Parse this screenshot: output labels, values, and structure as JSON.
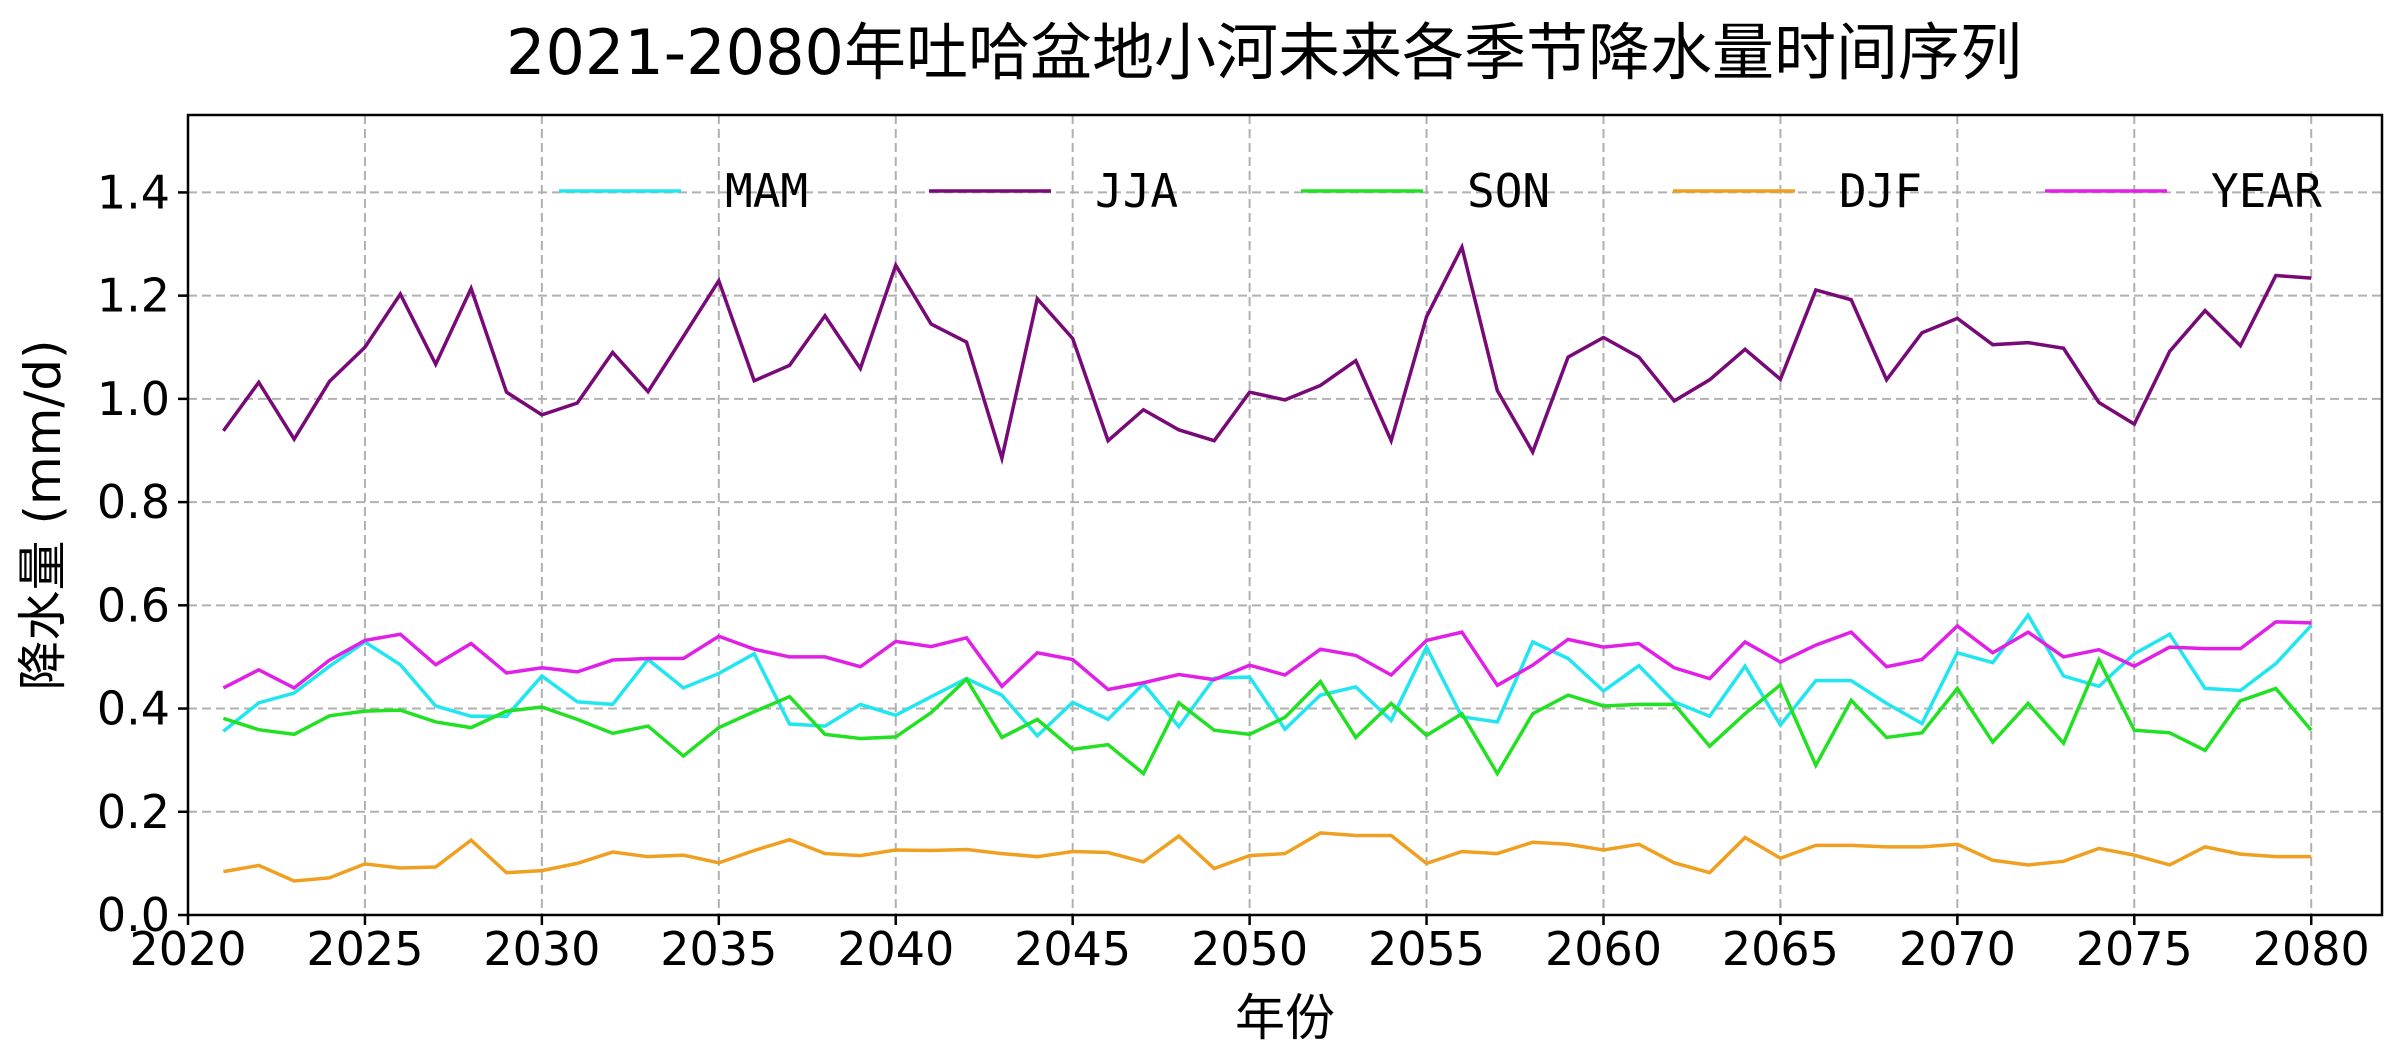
{
  "chart_data": {
    "type": "line",
    "title": "2021-2080年吐哈盆地小河未来各季节降水量时间序列",
    "xlabel": "年份",
    "ylabel": "降水量 (mm/d)",
    "xlim": [
      2020,
      2082
    ],
    "ylim": [
      0,
      1.55
    ],
    "xticks": [
      "2020",
      "2025",
      "2030",
      "2035",
      "2040",
      "2045",
      "2050",
      "2055",
      "2060",
      "2065",
      "2070",
      "2075",
      "2080"
    ],
    "yticks": [
      "0.0",
      "0.2",
      "0.4",
      "0.6",
      "0.8",
      "1.0",
      "1.2",
      "1.4"
    ],
    "grid": true,
    "legend_position": "top-right",
    "x": [
      2021,
      2022,
      2023,
      2024,
      2025,
      2026,
      2027,
      2028,
      2029,
      2030,
      2031,
      2032,
      2033,
      2034,
      2035,
      2036,
      2037,
      2038,
      2039,
      2040,
      2041,
      2042,
      2043,
      2044,
      2045,
      2046,
      2047,
      2048,
      2049,
      2050,
      2051,
      2052,
      2053,
      2054,
      2055,
      2056,
      2057,
      2058,
      2059,
      2060,
      2061,
      2062,
      2063,
      2064,
      2065,
      2066,
      2067,
      2068,
      2069,
      2070,
      2071,
      2072,
      2073,
      2074,
      2075,
      2076,
      2077,
      2078,
      2079,
      2080
    ],
    "series": [
      {
        "name": "MAM",
        "color": "#22e6ef",
        "values": [
          0.356,
          0.411,
          0.43,
          0.482,
          0.529,
          0.485,
          0.405,
          0.385,
          0.385,
          0.463,
          0.413,
          0.408,
          0.495,
          0.44,
          0.468,
          0.506,
          0.37,
          0.366,
          0.408,
          0.387,
          0.423,
          0.458,
          0.426,
          0.347,
          0.412,
          0.379,
          0.448,
          0.365,
          0.459,
          0.461,
          0.36,
          0.426,
          0.442,
          0.377,
          0.519,
          0.384,
          0.374,
          0.529,
          0.497,
          0.434,
          0.483,
          0.413,
          0.385,
          0.482,
          0.368,
          0.454,
          0.454,
          0.41,
          0.371,
          0.508,
          0.489,
          0.581,
          0.463,
          0.443,
          0.506,
          0.544,
          0.439,
          0.435,
          0.487,
          0.561
        ]
      },
      {
        "name": "JJA",
        "color": "#780a78",
        "values": [
          0.938,
          1.032,
          0.922,
          1.034,
          1.1,
          1.203,
          1.067,
          1.214,
          1.013,
          0.969,
          0.992,
          1.09,
          1.014,
          1.121,
          1.229,
          1.035,
          1.065,
          1.161,
          1.059,
          1.259,
          1.145,
          1.11,
          0.885,
          1.194,
          1.117,
          0.919,
          0.979,
          0.94,
          0.919,
          1.013,
          0.998,
          1.026,
          1.074,
          0.919,
          1.159,
          1.294,
          1.016,
          0.897,
          1.081,
          1.119,
          1.081,
          0.996,
          1.037,
          1.096,
          1.038,
          1.211,
          1.192,
          1.037,
          1.128,
          1.156,
          1.105,
          1.109,
          1.098,
          0.993,
          0.951,
          1.092,
          1.171,
          1.103,
          1.239,
          1.234
        ]
      },
      {
        "name": "SON",
        "color": "#22e022",
        "values": [
          0.381,
          0.359,
          0.35,
          0.386,
          0.395,
          0.397,
          0.374,
          0.363,
          0.395,
          0.403,
          0.379,
          0.352,
          0.366,
          0.308,
          0.363,
          0.394,
          0.423,
          0.35,
          0.342,
          0.345,
          0.392,
          0.457,
          0.344,
          0.379,
          0.321,
          0.33,
          0.274,
          0.411,
          0.358,
          0.35,
          0.383,
          0.452,
          0.344,
          0.41,
          0.348,
          0.39,
          0.274,
          0.39,
          0.426,
          0.405,
          0.408,
          0.408,
          0.327,
          0.39,
          0.446,
          0.29,
          0.416,
          0.344,
          0.353,
          0.439,
          0.335,
          0.41,
          0.333,
          0.494,
          0.358,
          0.353,
          0.319,
          0.415,
          0.439,
          0.358
        ]
      },
      {
        "name": "DJF",
        "color": "#f0a020",
        "values": [
          0.084,
          0.096,
          0.066,
          0.072,
          0.099,
          0.091,
          0.093,
          0.145,
          0.082,
          0.086,
          0.1,
          0.122,
          0.113,
          0.116,
          0.101,
          0.125,
          0.146,
          0.119,
          0.115,
          0.126,
          0.125,
          0.127,
          0.119,
          0.113,
          0.123,
          0.121,
          0.103,
          0.153,
          0.09,
          0.115,
          0.119,
          0.159,
          0.154,
          0.154,
          0.1,
          0.123,
          0.119,
          0.141,
          0.137,
          0.126,
          0.137,
          0.101,
          0.082,
          0.15,
          0.11,
          0.135,
          0.135,
          0.132,
          0.132,
          0.137,
          0.106,
          0.097,
          0.104,
          0.129,
          0.116,
          0.097,
          0.132,
          0.118,
          0.113,
          0.113
        ]
      },
      {
        "name": "YEAR",
        "color": "#e020e6",
        "values": [
          0.44,
          0.475,
          0.44,
          0.494,
          0.532,
          0.544,
          0.485,
          0.526,
          0.469,
          0.479,
          0.471,
          0.494,
          0.497,
          0.497,
          0.54,
          0.515,
          0.5,
          0.5,
          0.481,
          0.53,
          0.52,
          0.537,
          0.443,
          0.508,
          0.495,
          0.437,
          0.45,
          0.466,
          0.456,
          0.484,
          0.465,
          0.515,
          0.503,
          0.465,
          0.532,
          0.548,
          0.445,
          0.484,
          0.534,
          0.519,
          0.526,
          0.479,
          0.458,
          0.529,
          0.49,
          0.523,
          0.548,
          0.481,
          0.495,
          0.56,
          0.508,
          0.548,
          0.5,
          0.514,
          0.482,
          0.519,
          0.516,
          0.516,
          0.568,
          0.566
        ]
      }
    ]
  }
}
